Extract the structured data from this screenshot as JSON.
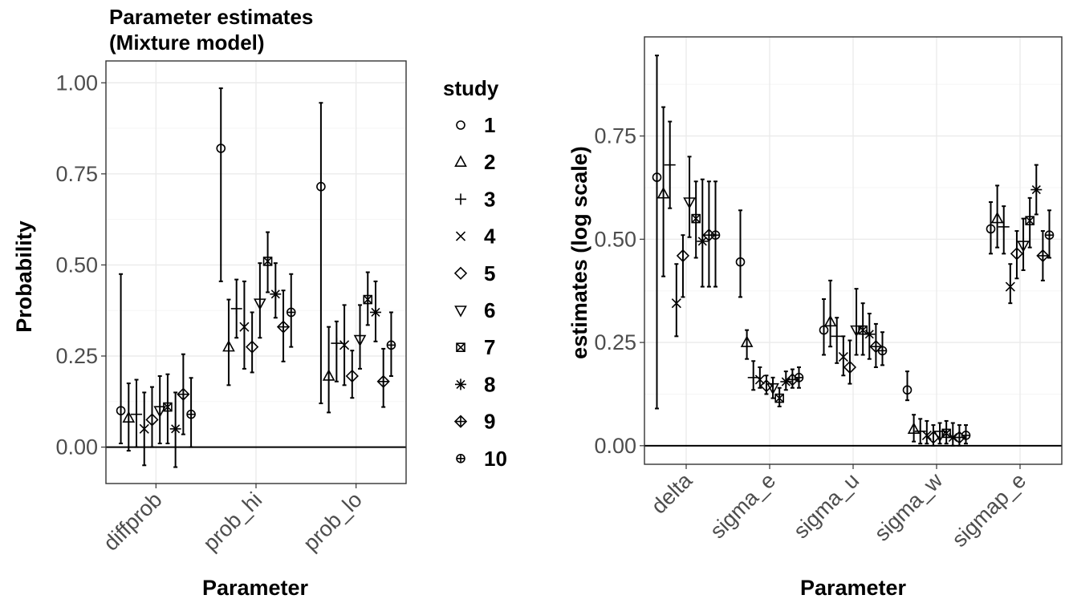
{
  "legend": {
    "title": "study",
    "items": [
      "1",
      "2",
      "3",
      "4",
      "5",
      "6",
      "7",
      "8",
      "9",
      "10"
    ]
  },
  "colors": {
    "ink": "#000000",
    "tick_text": "#4d4d4d",
    "grid_major": "#ebebeb",
    "grid_minor": "#f5f5f5"
  },
  "chart_data": [
    {
      "type": "scatter",
      "subtype": "point-range",
      "title": "Parameter estimates\n (Mixture model)",
      "xlabel": "Parameter",
      "ylabel": "Probability",
      "categories": [
        "diffprob",
        "prob_hi",
        "prob_lo"
      ],
      "y_ticks": [
        "0.00",
        "0.25",
        "0.50",
        "0.75",
        "1.00"
      ],
      "ylim": [
        -0.1,
        1.06
      ],
      "grid": true,
      "reference_line": 0,
      "legend_position": "right",
      "series": [
        {
          "name": "1",
          "estimate": [
            0.1,
            0.82,
            0.715
          ],
          "lower": [
            0.01,
            0.455,
            0.12
          ],
          "upper": [
            0.475,
            0.985,
            0.945
          ]
        },
        {
          "name": "2",
          "estimate": [
            0.08,
            0.275,
            0.195
          ],
          "lower": [
            -0.01,
            0.17,
            0.095
          ],
          "upper": [
            0.175,
            0.405,
            0.33
          ]
        },
        {
          "name": "3",
          "estimate": [
            0.09,
            0.38,
            0.285
          ],
          "lower": [
            0.0,
            0.3,
            0.18
          ],
          "upper": [
            0.185,
            0.46,
            0.345
          ]
        },
        {
          "name": "4",
          "estimate": [
            0.05,
            0.33,
            0.28
          ],
          "lower": [
            -0.05,
            0.215,
            0.17
          ],
          "upper": [
            0.15,
            0.455,
            0.39
          ]
        },
        {
          "name": "5",
          "estimate": [
            0.075,
            0.275,
            0.195
          ],
          "lower": [
            0.0,
            0.205,
            0.135
          ],
          "upper": [
            0.165,
            0.37,
            0.265
          ]
        },
        {
          "name": "6",
          "estimate": [
            0.1,
            0.395,
            0.295
          ],
          "lower": [
            0.01,
            0.3,
            0.215
          ],
          "upper": [
            0.195,
            0.505,
            0.39
          ]
        },
        {
          "name": "7",
          "estimate": [
            0.11,
            0.51,
            0.405
          ],
          "lower": [
            0.01,
            0.425,
            0.335
          ],
          "upper": [
            0.2,
            0.59,
            0.48
          ]
        },
        {
          "name": "8",
          "estimate": [
            0.05,
            0.42,
            0.37
          ],
          "lower": [
            -0.055,
            0.355,
            0.29
          ],
          "upper": [
            0.15,
            0.505,
            0.455
          ]
        },
        {
          "name": "9",
          "estimate": [
            0.145,
            0.33,
            0.18
          ],
          "lower": [
            0.035,
            0.235,
            0.11
          ],
          "upper": [
            0.255,
            0.43,
            0.27
          ]
        },
        {
          "name": "10",
          "estimate": [
            0.09,
            0.37,
            0.28
          ],
          "lower": [
            0.0,
            0.275,
            0.195
          ],
          "upper": [
            0.19,
            0.475,
            0.37
          ]
        }
      ]
    },
    {
      "type": "scatter",
      "subtype": "point-range",
      "title": "",
      "xlabel": "Parameter",
      "ylabel": "estimates (log scale)",
      "categories": [
        "delta",
        "sigma_e",
        "sigma_u",
        "sigma_w",
        "sigmap_e"
      ],
      "y_ticks": [
        "0.00",
        "0.25",
        "0.50",
        "0.75"
      ],
      "ylim": [
        -0.045,
        0.99
      ],
      "grid": true,
      "reference_line": 0,
      "series": [
        {
          "name": "1",
          "estimate": [
            0.65,
            0.445,
            0.28,
            0.135,
            0.525
          ],
          "lower": [
            0.09,
            0.36,
            0.22,
            0.11,
            0.465
          ],
          "upper": [
            0.945,
            0.57,
            0.355,
            0.18,
            0.59
          ]
        },
        {
          "name": "2",
          "estimate": [
            0.61,
            0.25,
            0.3,
            0.04,
            0.55
          ],
          "lower": [
            0.41,
            0.21,
            0.24,
            0.01,
            0.48
          ],
          "upper": [
            0.82,
            0.28,
            0.4,
            0.075,
            0.63
          ]
        },
        {
          "name": "3",
          "estimate": [
            0.68,
            0.165,
            0.265,
            0.035,
            0.53
          ],
          "lower": [
            0.575,
            0.135,
            0.2,
            0.005,
            0.465
          ],
          "upper": [
            0.785,
            0.205,
            0.31,
            0.065,
            0.58
          ]
        },
        {
          "name": "4",
          "estimate": [
            0.345,
            0.16,
            0.215,
            0.025,
            0.385
          ],
          "lower": [
            0.265,
            0.14,
            0.17,
            0.005,
            0.345
          ],
          "upper": [
            0.44,
            0.19,
            0.265,
            0.06,
            0.44
          ]
        },
        {
          "name": "5",
          "estimate": [
            0.46,
            0.145,
            0.19,
            0.02,
            0.465
          ],
          "lower": [
            0.36,
            0.125,
            0.15,
            0.0,
            0.405
          ],
          "upper": [
            0.51,
            0.17,
            0.255,
            0.05,
            0.52
          ]
        },
        {
          "name": "6",
          "estimate": [
            0.59,
            0.14,
            0.28,
            0.025,
            0.485
          ],
          "lower": [
            0.505,
            0.115,
            0.22,
            0.005,
            0.425
          ],
          "upper": [
            0.7,
            0.165,
            0.38,
            0.055,
            0.55
          ]
        },
        {
          "name": "7",
          "estimate": [
            0.55,
            0.115,
            0.28,
            0.03,
            0.545
          ],
          "lower": [
            0.455,
            0.095,
            0.22,
            0.005,
            0.48
          ],
          "upper": [
            0.64,
            0.14,
            0.345,
            0.06,
            0.6
          ]
        },
        {
          "name": "8",
          "estimate": [
            0.495,
            0.155,
            0.27,
            0.02,
            0.62
          ],
          "lower": [
            0.385,
            0.135,
            0.21,
            0.0,
            0.56
          ],
          "upper": [
            0.645,
            0.18,
            0.32,
            0.055,
            0.68
          ]
        },
        {
          "name": "9",
          "estimate": [
            0.51,
            0.16,
            0.24,
            0.02,
            0.46
          ],
          "lower": [
            0.385,
            0.14,
            0.19,
            0.0,
            0.4
          ],
          "upper": [
            0.64,
            0.185,
            0.295,
            0.05,
            0.52
          ]
        },
        {
          "name": "10",
          "estimate": [
            0.51,
            0.165,
            0.23,
            0.025,
            0.51
          ],
          "lower": [
            0.385,
            0.14,
            0.195,
            0.005,
            0.455
          ],
          "upper": [
            0.64,
            0.19,
            0.275,
            0.05,
            0.57
          ]
        }
      ]
    }
  ]
}
